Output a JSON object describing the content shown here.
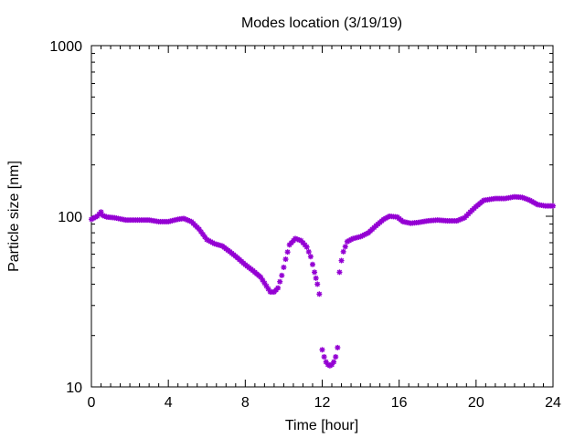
{
  "chart_data": {
    "type": "scatter",
    "title": "Modes location (3/19/19)",
    "xlabel": "Time [hour]",
    "ylabel": "Particle size [nm]",
    "xlim": [
      0,
      24
    ],
    "ylim": [
      10,
      1000
    ],
    "yscale": "log",
    "xticks": [
      0,
      4,
      8,
      12,
      16,
      20,
      24
    ],
    "xtick_labels": [
      "0",
      "4",
      "8",
      "12",
      "16",
      "20",
      "24"
    ],
    "yticks": [
      10,
      100,
      1000
    ],
    "ytick_labels": [
      "10",
      "100",
      "1000"
    ],
    "grid": false,
    "legend": "none",
    "marker": "asterisk",
    "marker_color": "#9400d3",
    "anchors": [
      [
        0.0,
        96
      ],
      [
        0.3,
        100
      ],
      [
        0.5,
        106
      ],
      [
        0.6,
        101
      ],
      [
        0.8,
        99
      ],
      [
        1.2,
        98
      ],
      [
        1.8,
        95
      ],
      [
        2.5,
        95
      ],
      [
        3.0,
        95
      ],
      [
        3.5,
        93
      ],
      [
        4.0,
        93
      ],
      [
        4.5,
        96
      ],
      [
        4.8,
        97
      ],
      [
        5.2,
        93
      ],
      [
        5.6,
        84
      ],
      [
        6.0,
        73
      ],
      [
        6.4,
        69
      ],
      [
        6.8,
        67
      ],
      [
        7.2,
        62
      ],
      [
        7.6,
        57
      ],
      [
        8.0,
        52
      ],
      [
        8.4,
        48
      ],
      [
        8.8,
        44
      ],
      [
        9.1,
        39
      ],
      [
        9.3,
        36
      ],
      [
        9.5,
        36
      ],
      [
        9.7,
        38
      ],
      [
        9.9,
        45
      ],
      [
        10.1,
        56
      ],
      [
        10.3,
        68
      ],
      [
        10.6,
        74
      ],
      [
        10.9,
        72
      ],
      [
        11.2,
        66
      ],
      [
        11.4,
        58
      ],
      [
        11.6,
        47
      ],
      [
        11.75,
        40
      ],
      [
        11.85,
        35
      ]
    ],
    "dip_points": [
      [
        12.0,
        16.5
      ],
      [
        12.1,
        15.0
      ],
      [
        12.2,
        14.0
      ],
      [
        12.3,
        13.5
      ],
      [
        12.4,
        13.3
      ],
      [
        12.5,
        13.5
      ],
      [
        12.6,
        14.0
      ],
      [
        12.7,
        15.0
      ],
      [
        12.8,
        17.0
      ]
    ],
    "anchors_after": [
      [
        12.9,
        47
      ],
      [
        13.0,
        55
      ],
      [
        13.1,
        62
      ],
      [
        13.3,
        71
      ],
      [
        13.6,
        74
      ],
      [
        14.0,
        76
      ],
      [
        14.4,
        80
      ],
      [
        14.8,
        88
      ],
      [
        15.2,
        96
      ],
      [
        15.5,
        100
      ],
      [
        15.9,
        99
      ],
      [
        16.2,
        93
      ],
      [
        16.6,
        91
      ],
      [
        17.0,
        92
      ],
      [
        17.5,
        94
      ],
      [
        18.0,
        95
      ],
      [
        18.5,
        94
      ],
      [
        19.0,
        94
      ],
      [
        19.4,
        98
      ],
      [
        19.7,
        106
      ],
      [
        20.0,
        114
      ],
      [
        20.4,
        124
      ],
      [
        21.0,
        127
      ],
      [
        21.5,
        127
      ],
      [
        22.0,
        130
      ],
      [
        22.4,
        129
      ],
      [
        22.8,
        124
      ],
      [
        23.2,
        117
      ],
      [
        23.6,
        115
      ],
      [
        24.0,
        115
      ]
    ]
  }
}
